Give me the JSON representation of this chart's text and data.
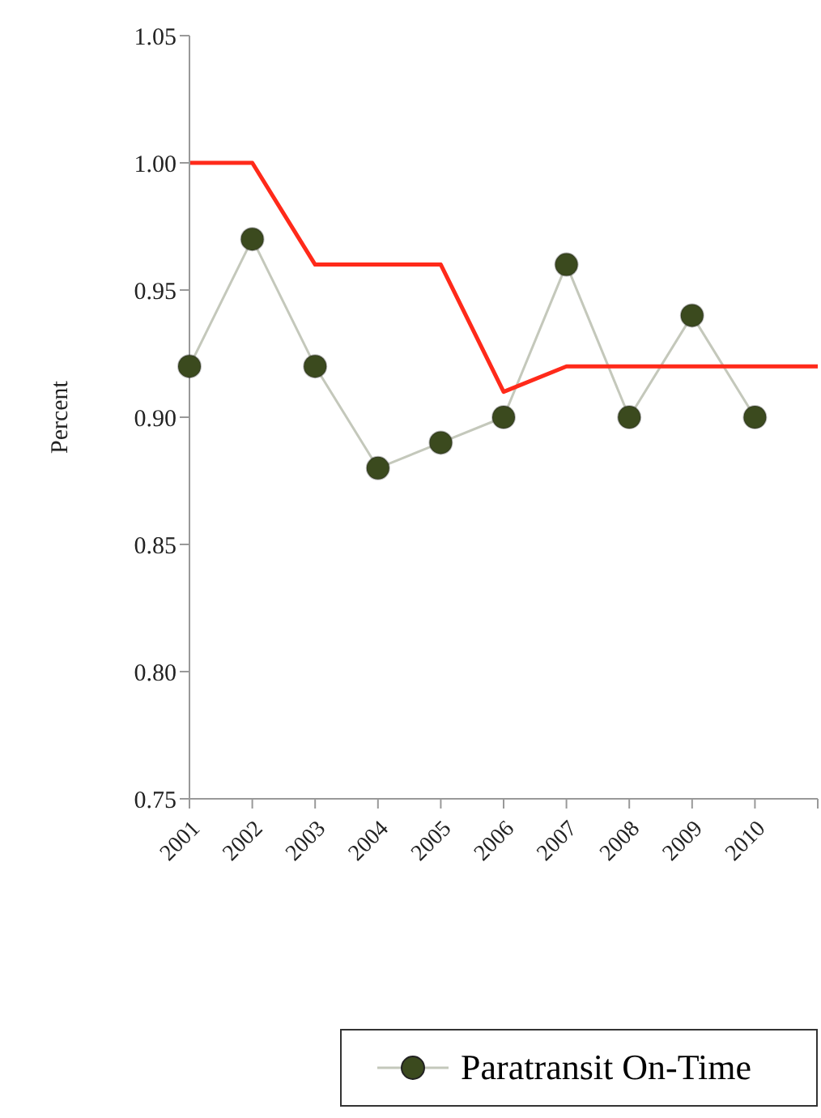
{
  "chart_data": {
    "type": "line",
    "ylabel": "Percent",
    "categories": [
      "2001",
      "2002",
      "2003",
      "2004",
      "2005",
      "2006",
      "2007",
      "2008",
      "2009",
      "2010",
      null
    ],
    "series": [
      {
        "name": "Paratransit On-Time",
        "color": "#3b4a1e",
        "marker": "circle",
        "values": [
          0.92,
          0.97,
          0.92,
          0.88,
          0.89,
          0.9,
          0.96,
          0.9,
          0.94,
          0.9,
          null
        ]
      },
      {
        "color": "#ff2a1a",
        "marker": "none",
        "values": [
          1.0,
          1.0,
          0.96,
          0.96,
          0.96,
          0.91,
          0.92,
          0.92,
          0.92,
          0.92,
          0.92
        ]
      }
    ],
    "ylim": [
      0.75,
      1.05
    ],
    "yticks": [
      0.75,
      {
        "value": 0.8,
        "label": "0.80"
      },
      0.85,
      {
        "value": 0.9,
        "label": "0.90"
      },
      0.95,
      {
        "value": 1,
        "label": "1.00"
      },
      1.05
    ],
    "grid": false,
    "legend": "bottom"
  }
}
